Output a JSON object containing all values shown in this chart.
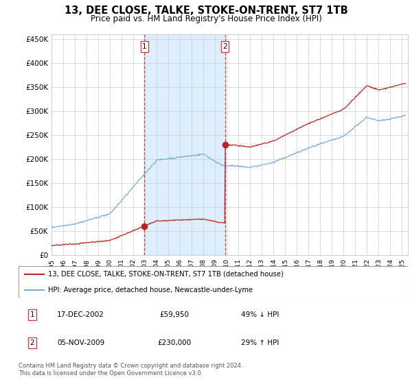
{
  "title": "13, DEE CLOSE, TALKE, STOKE-ON-TRENT, ST7 1TB",
  "subtitle": "Price paid vs. HM Land Registry's House Price Index (HPI)",
  "ylabel_ticks": [
    "£0",
    "£50K",
    "£100K",
    "£150K",
    "£200K",
    "£250K",
    "£300K",
    "£350K",
    "£400K",
    "£450K"
  ],
  "ytick_values": [
    0,
    50000,
    100000,
    150000,
    200000,
    250000,
    300000,
    350000,
    400000,
    450000
  ],
  "ylim": [
    0,
    460000
  ],
  "xlim_start": 1995.0,
  "xlim_end": 2025.5,
  "transaction1": {
    "date_num": 2002.96,
    "price": 59950,
    "label": "1"
  },
  "transaction2": {
    "date_num": 2009.84,
    "price": 230000,
    "label": "2"
  },
  "legend_line1": "13, DEE CLOSE, TALKE, STOKE-ON-TRENT, ST7 1TB (detached house)",
  "legend_line2": "HPI: Average price, detached house, Newcastle-under-Lyme",
  "table_row1_label": "1",
  "table_row1_date": "17-DEC-2002",
  "table_row1_price": "£59,950",
  "table_row1_hpi": "49% ↓ HPI",
  "table_row2_label": "2",
  "table_row2_date": "05-NOV-2009",
  "table_row2_price": "£230,000",
  "table_row2_hpi": "29% ↑ HPI",
  "footer": "Contains HM Land Registry data © Crown copyright and database right 2024.\nThis data is licensed under the Open Government Licence v3.0.",
  "hpi_color": "#7aaadd",
  "price_color": "#bb2222",
  "shade_color": "#ddeeff",
  "vline_color": "#cc4444",
  "background_color": "#ffffff"
}
